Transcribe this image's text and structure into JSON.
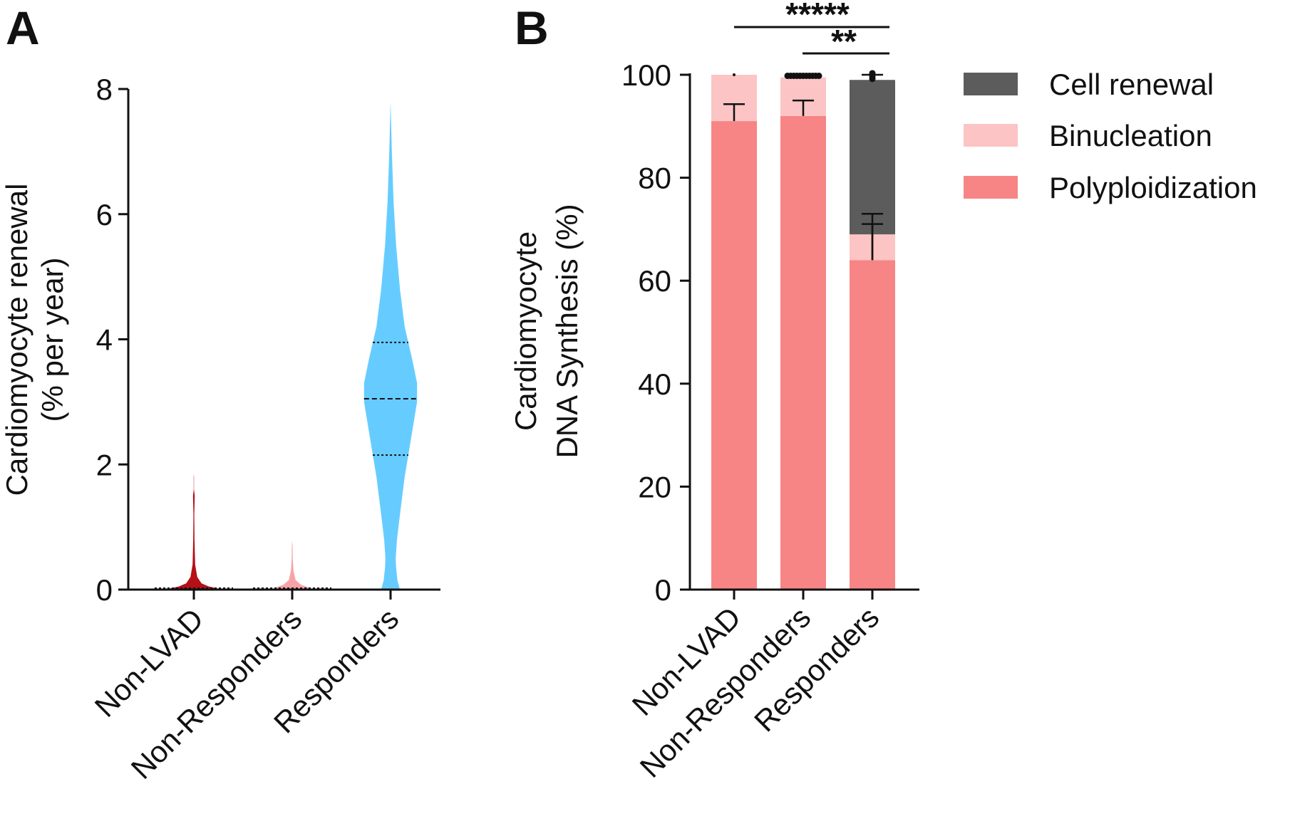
{
  "panels": {
    "a": {
      "letter": "A"
    },
    "b": {
      "letter": "B"
    }
  },
  "chart_data": [
    {
      "type": "violin",
      "panel": "A",
      "title": "",
      "ylabel_line1": "Cardiomyocyte renewal",
      "ylabel_line2": "(% per year)",
      "ylim": [
        0,
        8
      ],
      "yticks": [
        0,
        2,
        4,
        6,
        8
      ],
      "ytick_labels": [
        "0",
        "2",
        "4",
        "6",
        "8"
      ],
      "categories": [
        "Non-LVAD",
        "Non-Responders",
        "Responders"
      ],
      "series": [
        {
          "name": "Non-LVAD",
          "color": "#b50f18",
          "median": 0.01,
          "q1": 0.0,
          "q3": 0.02,
          "max": 1.85,
          "profile": [
            [
              0,
              0.45
            ],
            [
              0.02,
              0.55
            ],
            [
              0.05,
              0.35
            ],
            [
              0.1,
              0.18
            ],
            [
              0.2,
              0.08
            ],
            [
              0.4,
              0.03
            ],
            [
              0.8,
              0.015
            ],
            [
              1.2,
              0.01
            ],
            [
              1.5,
              0.02
            ],
            [
              1.6,
              0.004
            ],
            [
              1.8,
              0.004
            ],
            [
              1.85,
              0.0
            ]
          ]
        },
        {
          "name": "Non-Responders",
          "color": "#f7a3a8",
          "median": 0.0,
          "q1": 0.0,
          "q3": 0.01,
          "max": 0.78,
          "profile": [
            [
              0,
              0.35
            ],
            [
              0.03,
              0.4
            ],
            [
              0.08,
              0.2
            ],
            [
              0.15,
              0.08
            ],
            [
              0.3,
              0.03
            ],
            [
              0.5,
              0.012
            ],
            [
              0.7,
              0.008
            ],
            [
              0.78,
              0.0
            ]
          ]
        },
        {
          "name": "Responders",
          "color": "#66ccff",
          "median": 3.05,
          "q1": 2.15,
          "q3": 3.95,
          "max": 7.8,
          "profile": [
            [
              0,
              0.22
            ],
            [
              0.15,
              0.16
            ],
            [
              0.35,
              0.13
            ],
            [
              0.5,
              0.12
            ],
            [
              0.8,
              0.15
            ],
            [
              1.2,
              0.22
            ],
            [
              1.8,
              0.33
            ],
            [
              2.5,
              0.5
            ],
            [
              3.0,
              0.62
            ],
            [
              3.3,
              0.62
            ],
            [
              3.7,
              0.5
            ],
            [
              4.2,
              0.33
            ],
            [
              4.8,
              0.22
            ],
            [
              5.5,
              0.13
            ],
            [
              6.2,
              0.07
            ],
            [
              7.0,
              0.03
            ],
            [
              7.8,
              0.0
            ]
          ]
        }
      ]
    },
    {
      "type": "stacked_bar",
      "panel": "B",
      "title": "",
      "ylabel_line1": "Cardiomyocyte",
      "ylabel_line2": "DNA Synthesis (%)",
      "ylim": [
        0,
        100
      ],
      "yticks": [
        0,
        20,
        40,
        60,
        80,
        100
      ],
      "ytick_labels": [
        "0",
        "20",
        "40",
        "60",
        "80",
        "100"
      ],
      "categories": [
        "Non-LVAD",
        "Non-Responders",
        "Responders"
      ],
      "series": [
        {
          "name": "Polyploidization",
          "color": "#f78585",
          "values": [
            91,
            92,
            64
          ],
          "error_upper": [
            94.3,
            95,
            73
          ]
        },
        {
          "name": "Binucleation",
          "color": "#fcc4c4",
          "values": [
            9,
            7.5,
            5
          ],
          "error_upper": [
            100,
            100,
            71
          ]
        },
        {
          "name": "Cell renewal",
          "color": "#5c5c5c",
          "values": [
            0,
            0,
            30
          ],
          "error_upper": [
            100,
            100,
            100
          ]
        }
      ],
      "legend": [
        "Cell renewal",
        "Binucleation",
        "Polyploidization"
      ],
      "significance": [
        {
          "groups": [
            "Non-LVAD",
            "Responders"
          ],
          "label": "*****"
        },
        {
          "groups": [
            "Non-Responders",
            "Responders"
          ],
          "label": "**"
        }
      ]
    }
  ]
}
